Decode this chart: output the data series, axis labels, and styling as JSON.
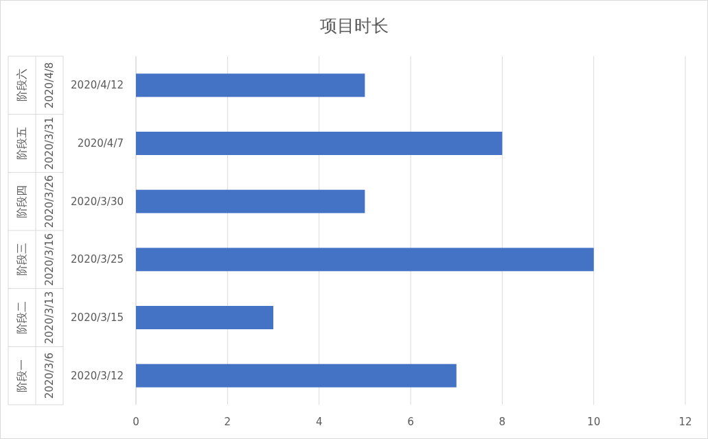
{
  "chart_data": {
    "type": "bar",
    "orientation": "horizontal",
    "title": "项目时长",
    "categories": [
      "阶段六\n2020/4/8\n2020/4/12",
      "阶段五\n2020/3/31\n2020/4/7",
      "阶段四\n2020/3/26\n2020/3/30",
      "阶段三\n2020/3/16\n2020/3/25",
      "阶段二\n2020/3/13\n2020/3/15",
      "阶段一\n2020/3/6\n2020/3/12"
    ],
    "values": [
      5,
      8,
      5,
      10,
      3,
      7
    ],
    "color": "#4472c4",
    "xlim": [
      0,
      12
    ],
    "xticks": [
      0,
      2,
      4,
      6,
      8,
      10,
      12
    ],
    "grid": "x"
  }
}
